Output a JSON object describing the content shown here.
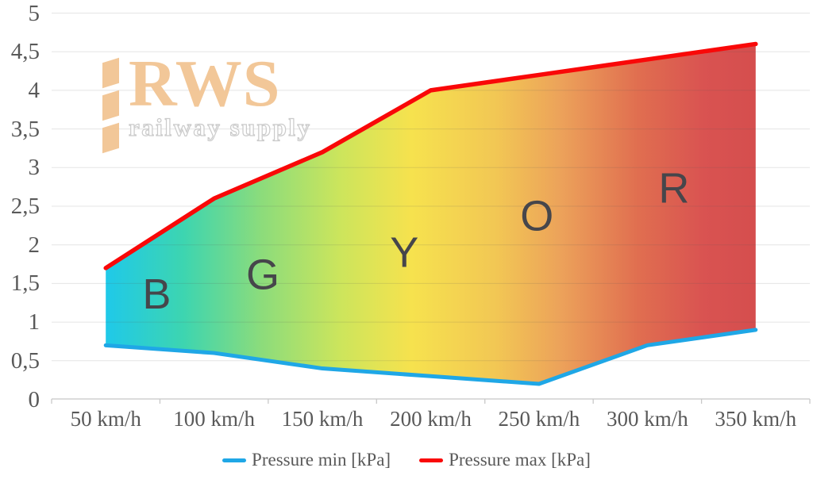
{
  "watermark": {
    "brand": "RWS",
    "tagline": "railway supply",
    "brand_color": "#F2C593"
  },
  "legend": {
    "min_label": "Pressure min [kPa]",
    "max_label": "Pressure max [kPa]"
  },
  "chart_data": {
    "type": "area",
    "title": "",
    "x_unit": "km/h",
    "x": [
      50,
      100,
      150,
      200,
      250,
      300,
      350
    ],
    "x_tick_labels": [
      "50 km/h",
      "100 km/h",
      "150 km/h",
      "200 km/h",
      "250 km/h",
      "300 km/h",
      "350 km/h"
    ],
    "y_tick_labels": [
      "0",
      "0,5",
      "1",
      "1,5",
      "2",
      "2,5",
      "3",
      "3,5",
      "4",
      "4,5",
      "5"
    ],
    "ylim": [
      0,
      5
    ],
    "y_tick_step": 0.5,
    "grid": true,
    "legend_position": "bottom-center",
    "series": [
      {
        "name": "Pressure min [kPa]",
        "color": "#1FA7E6",
        "values": [
          0.7,
          0.6,
          0.4,
          0.3,
          0.2,
          0.7,
          0.9
        ]
      },
      {
        "name": "Pressure max [kPa]",
        "color": "#F90808",
        "values": [
          1.7,
          2.6,
          3.2,
          4.0,
          4.2,
          4.4,
          4.6
        ]
      }
    ],
    "area_fill": "horizontal-gradient",
    "gradient_stops": [
      {
        "offset": 0.0,
        "color": "#1FC9E9"
      },
      {
        "offset": 0.12,
        "color": "#3DD5B0"
      },
      {
        "offset": 0.24,
        "color": "#8CDC7B"
      },
      {
        "offset": 0.36,
        "color": "#CCE55C"
      },
      {
        "offset": 0.47,
        "color": "#F6E24E"
      },
      {
        "offset": 0.6,
        "color": "#F2C754"
      },
      {
        "offset": 0.7,
        "color": "#ECA25A"
      },
      {
        "offset": 0.82,
        "color": "#E06E50"
      },
      {
        "offset": 0.92,
        "color": "#D95351"
      },
      {
        "offset": 1.0,
        "color": "#D54E4E"
      }
    ],
    "zone_labels": [
      {
        "letter": "B",
        "speed": 73.5,
        "kpa": 1.36
      },
      {
        "letter": "G",
        "speed": 122.5,
        "kpa": 1.61
      },
      {
        "letter": "Y",
        "speed": 187.8,
        "kpa": 1.9
      },
      {
        "letter": "O",
        "speed": 249.0,
        "kpa": 2.37
      },
      {
        "letter": "R",
        "speed": 312.3,
        "kpa": 2.73
      }
    ],
    "axis_text_color": "#595959"
  }
}
